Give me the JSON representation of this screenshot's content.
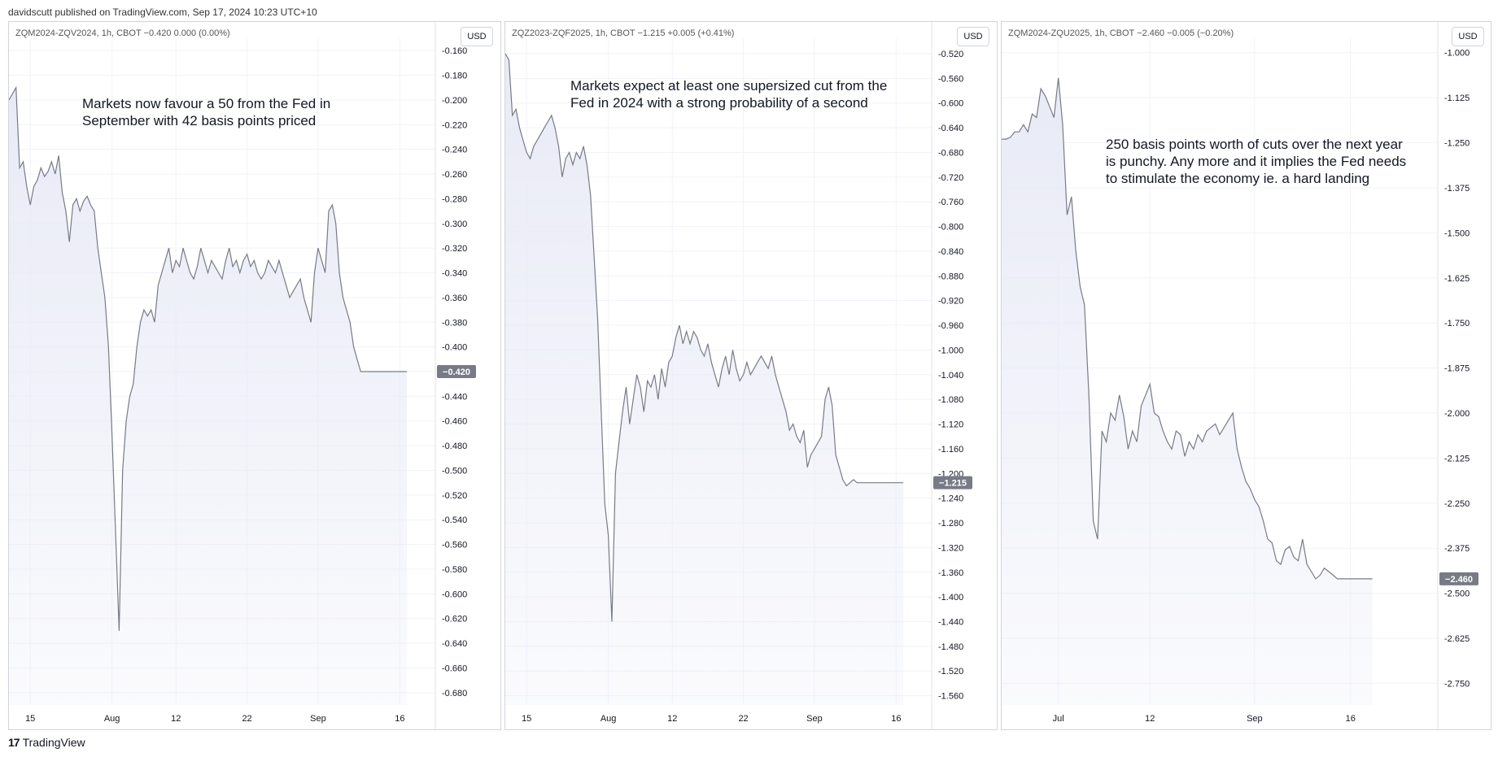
{
  "header": {
    "published": "davidscutt published on TradingView.com, Sep 17, 2024 10:23 UTC+10"
  },
  "footer": {
    "brand": "TradingView",
    "logo_text": "17"
  },
  "panels": [
    {
      "symbol": "ZQM2024-ZQV2024, 1h, CBOT",
      "last": "−0.420",
      "change": "0.000 (0.00%)",
      "currency": "USD",
      "note": [
        "Markets now favour a 50 from the Fed in",
        "September with 42 basis points priced"
      ]
    },
    {
      "symbol": "ZQZ2023-ZQF2025, 1h, CBOT",
      "last": "−1.215",
      "change": "+0.005 (+0.41%)",
      "currency": "USD",
      "note": [
        "Markets expect at least one supersized cut from the",
        "Fed in 2024 with a strong probability of a second"
      ]
    },
    {
      "symbol": "ZQM2024-ZQU2025, 1h, CBOT",
      "last": "−2.460",
      "change": "−0.005 (−0.20%)",
      "currency": "USD",
      "note": [
        "250 basis points worth of cuts over the next year",
        "is punchy. Any more and it implies the Fed needs",
        "to stimulate the economy ie. a hard landing"
      ]
    }
  ],
  "colors": {
    "line": "#787b86",
    "fill": "#e8eaf6",
    "grid": "#f0f3fa",
    "badge": "#787b86",
    "axis_text": "#131722"
  },
  "chart_data": [
    {
      "type": "area",
      "ylim": [
        -0.69,
        -0.15
      ],
      "yticks": [
        -0.16,
        -0.18,
        -0.2,
        -0.22,
        -0.24,
        -0.26,
        -0.28,
        -0.3,
        -0.32,
        -0.34,
        -0.36,
        -0.38,
        -0.4,
        -0.42,
        -0.44,
        -0.46,
        -0.48,
        -0.5,
        -0.52,
        -0.54,
        -0.56,
        -0.58,
        -0.6,
        -0.62,
        -0.64,
        -0.66,
        -0.68
      ],
      "ytick_labels": [
        "-0.160",
        "-0.180",
        "-0.200",
        "-0.220",
        "-0.240",
        "-0.260",
        "-0.280",
        "-0.300",
        "-0.320",
        "-0.340",
        "-0.360",
        "-0.380",
        "-0.400",
        "-0.420",
        "-0.440",
        "-0.460",
        "-0.480",
        "-0.500",
        "-0.520",
        "-0.540",
        "-0.560",
        "-0.580",
        "-0.600",
        "-0.620",
        "-0.640",
        "-0.660",
        "-0.680"
      ],
      "x_labels": [
        {
          "t": 6,
          "label": "15"
        },
        {
          "t": 29,
          "label": "Aug"
        },
        {
          "t": 47,
          "label": "12"
        },
        {
          "t": 67,
          "label": "22"
        },
        {
          "t": 87,
          "label": "Sep"
        },
        {
          "t": 110,
          "label": "16"
        }
      ],
      "x_max": 120,
      "last_value": -0.42,
      "x": [
        0,
        1,
        2,
        3,
        4,
        5,
        6,
        7,
        8,
        9,
        10,
        11,
        12,
        13,
        14,
        15,
        16,
        17,
        18,
        19,
        20,
        21,
        22,
        23,
        24,
        25,
        26,
        27,
        28,
        29,
        30,
        31,
        32,
        33,
        34,
        35,
        36,
        37,
        38,
        39,
        40,
        41,
        42,
        43,
        44,
        45,
        46,
        47,
        48,
        49,
        50,
        51,
        52,
        53,
        54,
        55,
        56,
        57,
        58,
        59,
        60,
        61,
        62,
        63,
        64,
        65,
        66,
        67,
        68,
        69,
        70,
        71,
        72,
        73,
        74,
        75,
        76,
        77,
        78,
        79,
        80,
        81,
        82,
        83,
        84,
        85,
        86,
        87,
        88,
        89,
        90,
        91,
        92,
        93,
        94,
        95,
        96,
        97,
        98,
        99,
        100,
        101,
        102,
        103,
        104,
        105,
        106,
        107,
        108,
        109,
        110,
        111,
        112
      ],
      "y": [
        -0.2,
        -0.195,
        -0.19,
        -0.255,
        -0.25,
        -0.27,
        -0.285,
        -0.27,
        -0.265,
        -0.255,
        -0.262,
        -0.258,
        -0.25,
        -0.26,
        -0.245,
        -0.275,
        -0.29,
        -0.315,
        -0.285,
        -0.28,
        -0.29,
        -0.282,
        -0.278,
        -0.285,
        -0.29,
        -0.32,
        -0.34,
        -0.36,
        -0.4,
        -0.47,
        -0.55,
        -0.63,
        -0.5,
        -0.46,
        -0.44,
        -0.43,
        -0.4,
        -0.38,
        -0.37,
        -0.375,
        -0.37,
        -0.38,
        -0.35,
        -0.34,
        -0.33,
        -0.32,
        -0.34,
        -0.33,
        -0.335,
        -0.32,
        -0.33,
        -0.34,
        -0.345,
        -0.335,
        -0.32,
        -0.33,
        -0.34,
        -0.33,
        -0.335,
        -0.34,
        -0.345,
        -0.33,
        -0.32,
        -0.335,
        -0.33,
        -0.34,
        -0.33,
        -0.325,
        -0.335,
        -0.33,
        -0.34,
        -0.345,
        -0.34,
        -0.33,
        -0.335,
        -0.34,
        -0.33,
        -0.34,
        -0.35,
        -0.36,
        -0.355,
        -0.35,
        -0.345,
        -0.36,
        -0.37,
        -0.38,
        -0.34,
        -0.32,
        -0.33,
        -0.34,
        -0.29,
        -0.285,
        -0.3,
        -0.34,
        -0.36,
        -0.37,
        -0.38,
        -0.4,
        -0.41,
        -0.42,
        -0.42,
        -0.42,
        -0.42,
        -0.42,
        -0.42,
        -0.42,
        -0.42,
        -0.42,
        -0.42,
        -0.42,
        -0.42,
        -0.42,
        -0.42
      ]
    },
    {
      "type": "area",
      "ylim": [
        -1.575,
        -0.495
      ],
      "yticks": [
        -0.52,
        -0.56,
        -0.6,
        -0.64,
        -0.68,
        -0.72,
        -0.76,
        -0.8,
        -0.84,
        -0.88,
        -0.92,
        -0.96,
        -1.0,
        -1.04,
        -1.08,
        -1.12,
        -1.16,
        -1.2,
        -1.24,
        -1.28,
        -1.32,
        -1.36,
        -1.4,
        -1.44,
        -1.48,
        -1.52,
        -1.56
      ],
      "ytick_labels": [
        "-0.520",
        "-0.560",
        "-0.600",
        "-0.640",
        "-0.680",
        "-0.720",
        "-0.760",
        "-0.800",
        "-0.840",
        "-0.880",
        "-0.920",
        "-0.960",
        "-1.000",
        "-1.040",
        "-1.080",
        "-1.120",
        "-1.160",
        "-1.200",
        "-1.240",
        "-1.280",
        "-1.320",
        "-1.360",
        "-1.400",
        "-1.440",
        "-1.480",
        "-1.520",
        "-1.560"
      ],
      "x_labels": [
        {
          "t": 6,
          "label": "15"
        },
        {
          "t": 29,
          "label": "Aug"
        },
        {
          "t": 47,
          "label": "12"
        },
        {
          "t": 67,
          "label": "22"
        },
        {
          "t": 87,
          "label": "Sep"
        },
        {
          "t": 110,
          "label": "16"
        }
      ],
      "x_max": 120,
      "last_value": -1.215,
      "x": [
        0,
        1,
        2,
        3,
        4,
        5,
        6,
        7,
        8,
        9,
        10,
        11,
        12,
        13,
        14,
        15,
        16,
        17,
        18,
        19,
        20,
        21,
        22,
        23,
        24,
        25,
        26,
        27,
        28,
        29,
        30,
        31,
        32,
        33,
        34,
        35,
        36,
        37,
        38,
        39,
        40,
        41,
        42,
        43,
        44,
        45,
        46,
        47,
        48,
        49,
        50,
        51,
        52,
        53,
        54,
        55,
        56,
        57,
        58,
        59,
        60,
        61,
        62,
        63,
        64,
        65,
        66,
        67,
        68,
        69,
        70,
        71,
        72,
        73,
        74,
        75,
        76,
        77,
        78,
        79,
        80,
        81,
        82,
        83,
        84,
        85,
        86,
        87,
        88,
        89,
        90,
        91,
        92,
        93,
        94,
        95,
        96,
        97,
        98,
        99,
        100,
        101,
        102,
        103,
        104,
        105,
        106,
        107,
        108,
        109,
        110,
        111,
        112
      ],
      "y": [
        -0.52,
        -0.53,
        -0.62,
        -0.61,
        -0.64,
        -0.66,
        -0.68,
        -0.69,
        -0.67,
        -0.66,
        -0.65,
        -0.64,
        -0.63,
        -0.62,
        -0.64,
        -0.67,
        -0.72,
        -0.69,
        -0.68,
        -0.7,
        -0.68,
        -0.69,
        -0.67,
        -0.7,
        -0.75,
        -0.85,
        -0.95,
        -1.1,
        -1.25,
        -1.3,
        -1.44,
        -1.2,
        -1.15,
        -1.1,
        -1.06,
        -1.12,
        -1.08,
        -1.04,
        -1.06,
        -1.1,
        -1.05,
        -1.06,
        -1.04,
        -1.08,
        -1.03,
        -1.06,
        -1.02,
        -1.01,
        -0.98,
        -0.96,
        -0.99,
        -0.97,
        -0.99,
        -0.97,
        -0.98,
        -1.0,
        -1.01,
        -0.99,
        -1.02,
        -1.04,
        -1.06,
        -1.03,
        -1.01,
        -1.04,
        -1.0,
        -1.03,
        -1.05,
        -1.04,
        -1.02,
        -1.04,
        -1.03,
        -1.02,
        -1.01,
        -1.02,
        -1.03,
        -1.01,
        -1.04,
        -1.06,
        -1.08,
        -1.1,
        -1.13,
        -1.12,
        -1.14,
        -1.15,
        -1.13,
        -1.19,
        -1.17,
        -1.16,
        -1.15,
        -1.14,
        -1.08,
        -1.06,
        -1.09,
        -1.17,
        -1.19,
        -1.21,
        -1.22,
        -1.215,
        -1.21,
        -1.215,
        -1.215,
        -1.215,
        -1.215,
        -1.215,
        -1.215,
        -1.215,
        -1.215,
        -1.215,
        -1.215,
        -1.215,
        -1.215,
        -1.215,
        -1.215
      ]
    },
    {
      "type": "area",
      "ylim": [
        -2.81,
        -0.96
      ],
      "yticks": [
        -1.0,
        -1.125,
        -1.25,
        -1.375,
        -1.5,
        -1.625,
        -1.75,
        -1.875,
        -2.0,
        -2.125,
        -2.25,
        -2.375,
        -2.5,
        -2.625,
        -2.75
      ],
      "ytick_labels": [
        "-1.000",
        "-1.125",
        "-1.250",
        "-1.375",
        "-1.500",
        "-1.625",
        "-1.750",
        "-1.875",
        "-2.000",
        "-2.125",
        "-2.250",
        "-2.375",
        "-2.500",
        "-2.625",
        "-2.750"
      ],
      "x_labels": [
        {
          "t": 13,
          "label": "Jul"
        },
        {
          "t": 34,
          "label": "12"
        },
        {
          "t": 58,
          "label": "Sep"
        },
        {
          "t": 80,
          "label": "16"
        }
      ],
      "x_max": 100,
      "last_value": -2.46,
      "x": [
        0,
        1,
        2,
        3,
        4,
        5,
        6,
        7,
        8,
        9,
        10,
        11,
        12,
        13,
        14,
        15,
        16,
        17,
        18,
        19,
        20,
        21,
        22,
        23,
        24,
        25,
        26,
        27,
        28,
        29,
        30,
        31,
        32,
        33,
        34,
        35,
        36,
        37,
        38,
        39,
        40,
        41,
        42,
        43,
        44,
        45,
        46,
        47,
        48,
        49,
        50,
        51,
        52,
        53,
        54,
        55,
        56,
        57,
        58,
        59,
        60,
        61,
        62,
        63,
        64,
        65,
        66,
        67,
        68,
        69,
        70,
        71,
        72,
        73,
        74,
        75,
        76,
        77,
        78,
        79,
        80,
        81,
        82,
        83,
        84,
        85
      ],
      "y": [
        -1.24,
        -1.24,
        -1.235,
        -1.22,
        -1.22,
        -1.2,
        -1.22,
        -1.17,
        -1.18,
        -1.1,
        -1.12,
        -1.15,
        -1.18,
        -1.07,
        -1.2,
        -1.45,
        -1.4,
        -1.55,
        -1.65,
        -1.7,
        -1.95,
        -2.3,
        -2.35,
        -2.05,
        -2.08,
        -2.0,
        -2.02,
        -1.95,
        -2.01,
        -2.1,
        -2.05,
        -2.08,
        -1.98,
        -1.95,
        -1.92,
        -2.0,
        -2.01,
        -2.05,
        -2.08,
        -2.1,
        -2.05,
        -2.06,
        -2.12,
        -2.08,
        -2.1,
        -2.06,
        -2.08,
        -2.05,
        -2.04,
        -2.03,
        -2.06,
        -2.04,
        -2.02,
        -2.0,
        -2.1,
        -2.15,
        -2.19,
        -2.21,
        -2.24,
        -2.26,
        -2.3,
        -2.35,
        -2.36,
        -2.41,
        -2.42,
        -2.38,
        -2.37,
        -2.4,
        -2.41,
        -2.35,
        -2.42,
        -2.44,
        -2.46,
        -2.45,
        -2.43,
        -2.44,
        -2.45,
        -2.46,
        -2.46,
        -2.46,
        -2.46,
        -2.46,
        -2.46,
        -2.46,
        -2.46,
        -2.46
      ]
    }
  ]
}
